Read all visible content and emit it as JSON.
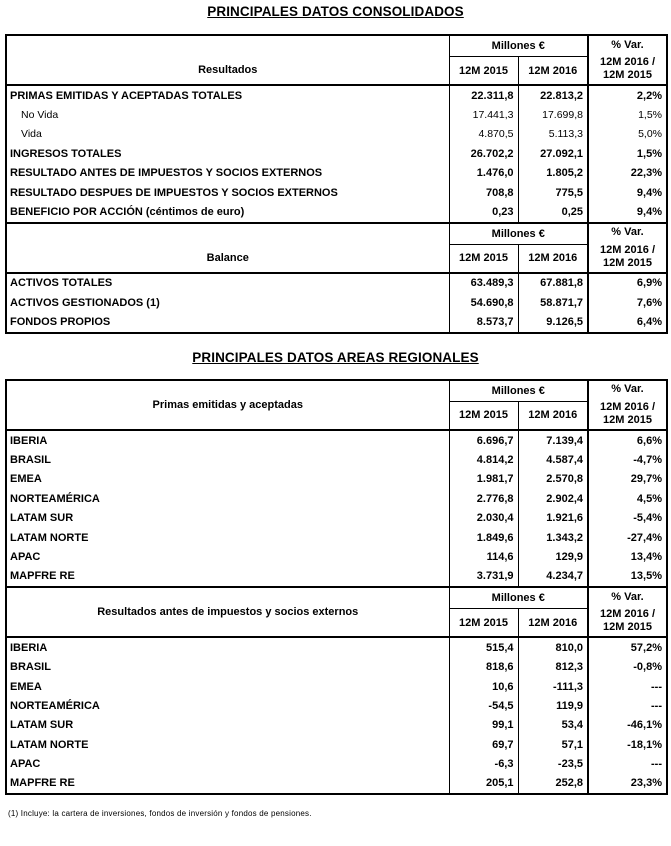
{
  "page": {
    "title_consolidated": "PRINCIPALES DATOS CONSOLIDADOS",
    "title_regional": "PRINCIPALES DATOS AREAS REGIONALES",
    "footnote": "(1) Incluye: la cartera de inversiones, fondos de inversión y fondos de pensiones."
  },
  "headers": {
    "currency": "Millones €",
    "var": "% Var.",
    "period_2015": "12M 2015",
    "period_2016": "12M 2016",
    "var_period_line1": "12M 2016 /",
    "var_period_line2": "12M 2015"
  },
  "sections": [
    {
      "label": "Resultados",
      "rows": [
        {
          "label": "PRIMAS EMITIDAS Y ACEPTADAS TOTALES",
          "v2015": "22.311,8",
          "v2016": "22.813,2",
          "var": "2,2%",
          "sub": false
        },
        {
          "label": "No Vida",
          "v2015": "17.441,3",
          "v2016": "17.699,8",
          "var": "1,5%",
          "sub": true
        },
        {
          "label": "Vida",
          "v2015": "4.870,5",
          "v2016": "5.113,3",
          "var": "5,0%",
          "sub": true
        },
        {
          "label": "INGRESOS TOTALES",
          "v2015": "26.702,2",
          "v2016": "27.092,1",
          "var": "1,5%",
          "sub": false
        },
        {
          "label": "RESULTADO ANTES DE IMPUESTOS Y SOCIOS EXTERNOS",
          "v2015": "1.476,0",
          "v2016": "1.805,2",
          "var": "22,3%",
          "sub": false
        },
        {
          "label": "RESULTADO DESPUES DE IMPUESTOS Y SOCIOS EXTERNOS",
          "v2015": "708,8",
          "v2016": "775,5",
          "var": "9,4%",
          "sub": false
        },
        {
          "label": "BENEFICIO POR ACCIÓN (céntimos de euro)",
          "v2015": "0,23",
          "v2016": "0,25",
          "var": "9,4%",
          "sub": false
        }
      ]
    },
    {
      "label": "Balance",
      "rows": [
        {
          "label": "ACTIVOS TOTALES",
          "v2015": "63.489,3",
          "v2016": "67.881,8",
          "var": "6,9%",
          "sub": false
        },
        {
          "label": "ACTIVOS GESTIONADOS (1)",
          "v2015": "54.690,8",
          "v2016": "58.871,7",
          "var": "7,6%",
          "sub": false
        },
        {
          "label": "FONDOS PROPIOS",
          "v2015": "8.573,7",
          "v2016": "9.126,5",
          "var": "6,4%",
          "sub": false
        }
      ]
    },
    {
      "label": "Primas emitidas y aceptadas",
      "rows": [
        {
          "label": "IBERIA",
          "v2015": "6.696,7",
          "v2016": "7.139,4",
          "var": "6,6%",
          "sub": false
        },
        {
          "label": "BRASIL",
          "v2015": "4.814,2",
          "v2016": "4.587,4",
          "var": "-4,7%",
          "sub": false
        },
        {
          "label": "EMEA",
          "v2015": "1.981,7",
          "v2016": "2.570,8",
          "var": "29,7%",
          "sub": false
        },
        {
          "label": "NORTEAMÉRICA",
          "v2015": "2.776,8",
          "v2016": "2.902,4",
          "var": "4,5%",
          "sub": false
        },
        {
          "label": "LATAM SUR",
          "v2015": "2.030,4",
          "v2016": "1.921,6",
          "var": "-5,4%",
          "sub": false
        },
        {
          "label": "LATAM NORTE",
          "v2015": "1.849,6",
          "v2016": "1.343,2",
          "var": "-27,4%",
          "sub": false
        },
        {
          "label": "APAC",
          "v2015": "114,6",
          "v2016": "129,9",
          "var": "13,4%",
          "sub": false
        },
        {
          "label": "MAPFRE RE",
          "v2015": "3.731,9",
          "v2016": "4.234,7",
          "var": "13,5%",
          "sub": false
        }
      ]
    },
    {
      "label": "Resultados antes de impuestos y socios externos",
      "rows": [
        {
          "label": "IBERIA",
          "v2015": "515,4",
          "v2016": "810,0",
          "var": "57,2%",
          "sub": false
        },
        {
          "label": "BRASIL",
          "v2015": "818,6",
          "v2016": "812,3",
          "var": "-0,8%",
          "sub": false
        },
        {
          "label": "EMEA",
          "v2015": "10,6",
          "v2016": "-111,3",
          "var": "---",
          "sub": false
        },
        {
          "label": "NORTEAMÉRICA",
          "v2015": "-54,5",
          "v2016": "119,9",
          "var": "---",
          "sub": false
        },
        {
          "label": "LATAM SUR",
          "v2015": "99,1",
          "v2016": "53,4",
          "var": "-46,1%",
          "sub": false
        },
        {
          "label": "LATAM NORTE",
          "v2015": "69,7",
          "v2016": "57,1",
          "var": "-18,1%",
          "sub": false
        },
        {
          "label": "APAC",
          "v2015": "-6,3",
          "v2016": "-23,5",
          "var": "---",
          "sub": false
        },
        {
          "label": "MAPFRE RE",
          "v2015": "205,1",
          "v2016": "252,8",
          "var": "23,3%",
          "sub": false
        }
      ]
    }
  ]
}
